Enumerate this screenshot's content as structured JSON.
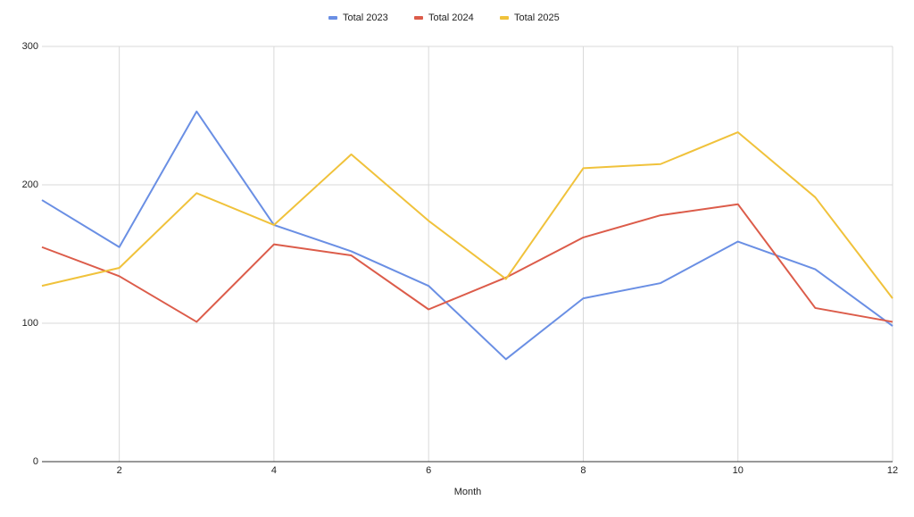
{
  "chart_data": {
    "type": "line",
    "x_label": "Month",
    "x": [
      1,
      2,
      3,
      4,
      5,
      6,
      7,
      8,
      9,
      10,
      11,
      12
    ],
    "series": [
      {
        "name": "Total 2023",
        "color": "#6a8fe4",
        "values": [
          189,
          155,
          253,
          171,
          152,
          127,
          74,
          118,
          129,
          159,
          139,
          98
        ]
      },
      {
        "name": "Total 2024",
        "color": "#dc5c4a",
        "values": [
          155,
          134,
          101,
          157,
          149,
          110,
          133,
          162,
          178,
          186,
          111,
          101
        ]
      },
      {
        "name": "Total 2025",
        "color": "#f0c23b",
        "values": [
          127,
          140,
          194,
          171,
          222,
          174,
          132,
          212,
          215,
          238,
          191,
          118
        ]
      }
    ],
    "xlim": [
      1,
      12
    ],
    "xticks": [
      2,
      4,
      6,
      8,
      10,
      12
    ],
    "ylim": [
      0,
      300
    ],
    "yticks": [
      0,
      100,
      200,
      300
    ],
    "grid": true,
    "legend": "top"
  }
}
